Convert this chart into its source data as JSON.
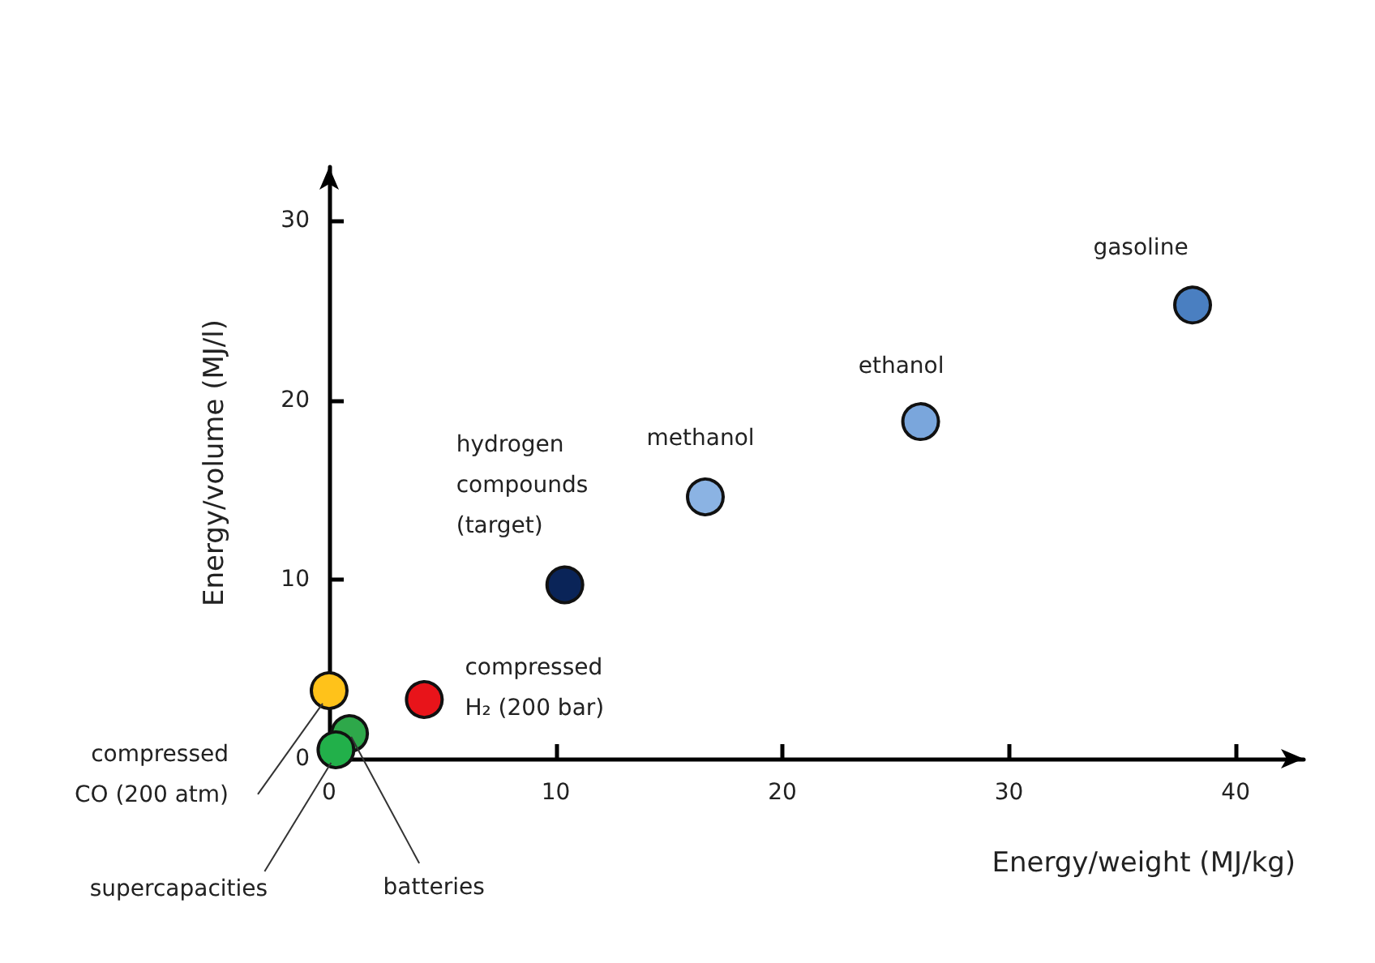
{
  "chart_data": {
    "type": "scatter",
    "xlabel": "Energy/weight (MJ/kg)",
    "ylabel": "Energy/volume (MJ/l)",
    "x": [
      38.1,
      26.1,
      16.6,
      10.4,
      4.2,
      0,
      0.9,
      0.3
    ],
    "values": [
      25.3,
      18.8,
      14.6,
      9.7,
      3.3,
      3.8,
      1.4,
      0.5
    ],
    "colors": [
      "#4a7fc1",
      "#7aa6dc",
      "#8bb3e3",
      "#0a2458",
      "#e8141a",
      "#ffc21a",
      "#2ea84a",
      "#22b04a"
    ],
    "xlim": [
      0,
      43
    ],
    "ylim": [
      0,
      33
    ],
    "xticks": [
      0,
      10,
      20,
      30,
      40
    ],
    "yticks": [
      0,
      10,
      20,
      30
    ],
    "marker": "circle",
    "grid": false,
    "annotations": [
      {
        "text": "gasoline",
        "x": 38.1,
        "y": 25.3
      },
      {
        "text": "ethanol",
        "x": 26.1,
        "y": 18.8
      },
      {
        "text": "methanol",
        "x": 16.6,
        "y": 14.6
      },
      {
        "text": "hydrogen\ncompounds\n(target)",
        "x": 10.4,
        "y": 9.7
      },
      {
        "text": "compressed\nH₂ (200 bar)",
        "x": 4.2,
        "y": 3.3
      },
      {
        "text": "compressed\nCO (200 atm)",
        "x": 0,
        "y": 3.8
      },
      {
        "text": "batteries",
        "x": 0.9,
        "y": 1.4
      },
      {
        "text": "supercapacities",
        "x": 0.3,
        "y": 0.5
      }
    ]
  }
}
